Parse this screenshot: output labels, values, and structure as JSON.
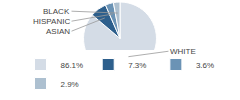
{
  "chart_data": {
    "type": "pie",
    "categories": [
      "WHITE",
      "ASIAN",
      "HISPANIC",
      "BLACK"
    ],
    "values": [
      86.1,
      7.3,
      3.6,
      2.9
    ],
    "value_labels": [
      "86.1%",
      "7.3%",
      "3.6%",
      "2.9%"
    ],
    "colors": [
      "#d4dce6",
      "#2d5f8c",
      "#6b93b5",
      "#adc0d0"
    ],
    "legend": "bottom"
  }
}
